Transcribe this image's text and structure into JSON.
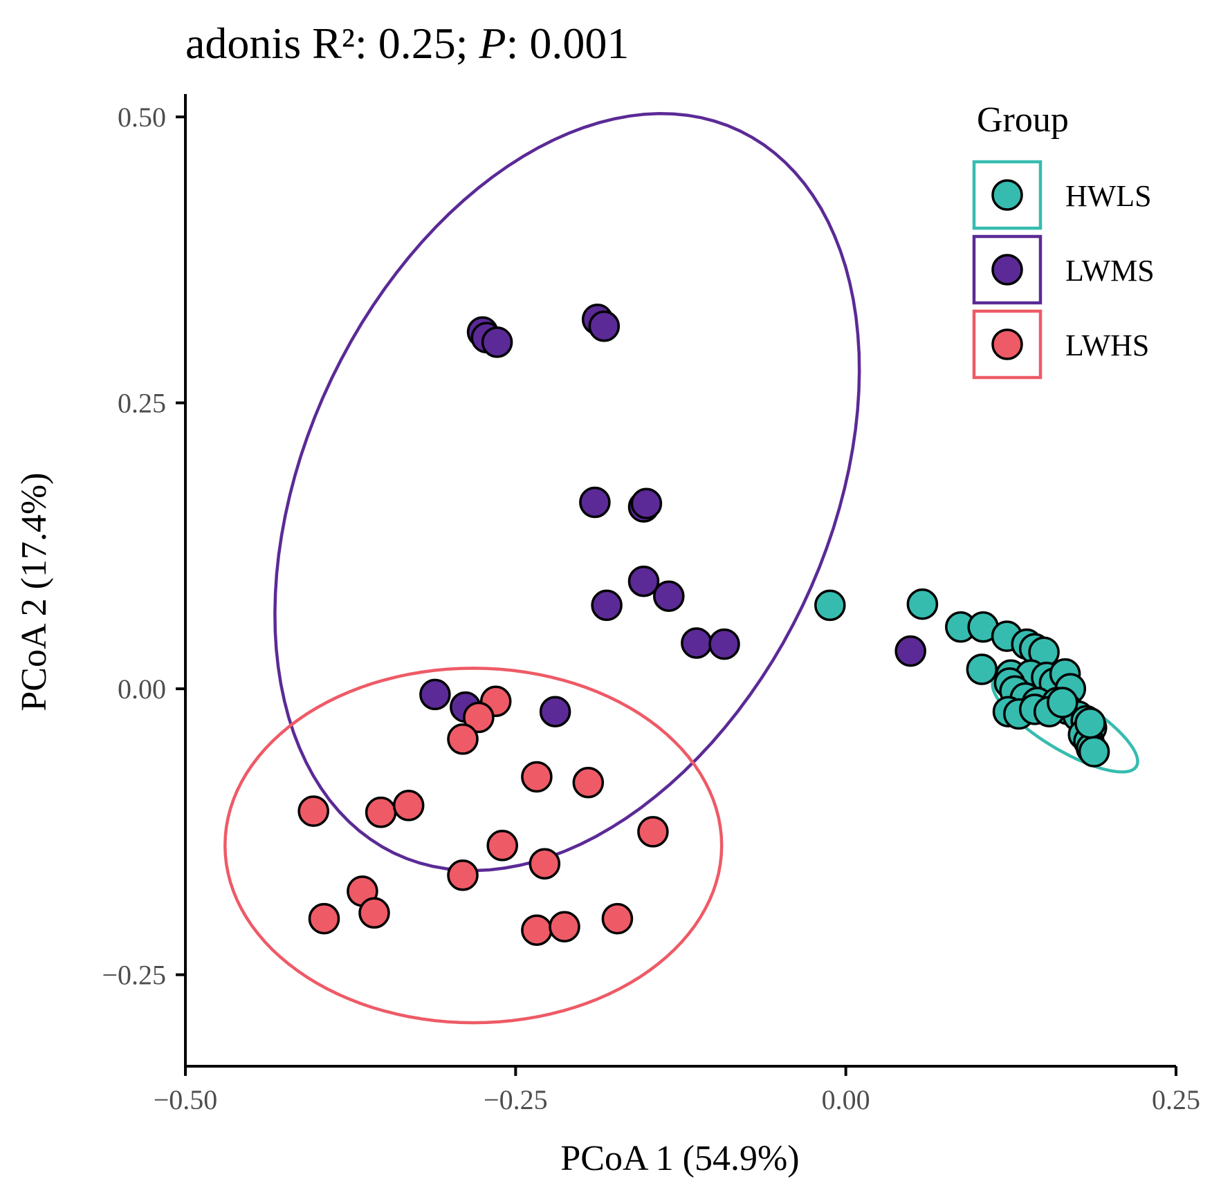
{
  "chart_data": {
    "type": "scatter",
    "title_prefix": "adonis R²: 0.25; ",
    "title_p": "P",
    "title_suffix": ": 0.001",
    "xlabel": "PCoA 1 (54.9%)",
    "ylabel": "PCoA 2 (17.4%)",
    "xlim": [
      -0.5,
      0.25
    ],
    "ylim": [
      -0.33,
      0.52
    ],
    "x_ticks": [
      -0.5,
      -0.25,
      0.0,
      0.25
    ],
    "x_tick_labels": [
      "−0.50",
      "−0.25",
      "0.00",
      "0.25"
    ],
    "y_ticks": [
      -0.25,
      0.0,
      0.25,
      0.5
    ],
    "y_tick_labels": [
      "−0.25",
      "0.00",
      "0.25",
      "0.50"
    ],
    "grid": false,
    "legend": {
      "title": "Group",
      "position": "top-right"
    },
    "series": [
      {
        "name": "HWLS",
        "color": "#35BCAF",
        "ellipse": {
          "cx": 0.166,
          "cy": -0.03,
          "rx": 0.066,
          "ry": 0.022,
          "angle_deg": -36
        },
        "points": [
          [
            -0.012,
            0.073
          ],
          [
            0.058,
            0.074
          ],
          [
            0.087,
            0.054
          ],
          [
            0.104,
            0.054
          ],
          [
            0.122,
            0.046
          ],
          [
            0.137,
            0.039
          ],
          [
            0.143,
            0.035
          ],
          [
            0.15,
            0.032
          ],
          [
            0.103,
            0.017
          ],
          [
            0.125,
            0.012
          ],
          [
            0.14,
            0.012
          ],
          [
            0.152,
            0.01
          ],
          [
            0.158,
            0.005
          ],
          [
            0.166,
            0.013
          ],
          [
            0.17,
            0.0
          ],
          [
            0.124,
            0.005
          ],
          [
            0.128,
            -0.002
          ],
          [
            0.136,
            -0.008
          ],
          [
            0.145,
            -0.012
          ],
          [
            0.16,
            -0.012
          ],
          [
            0.168,
            -0.018
          ],
          [
            0.176,
            -0.024
          ],
          [
            0.182,
            -0.028
          ],
          [
            0.186,
            -0.034
          ],
          [
            0.123,
            -0.02
          ],
          [
            0.131,
            -0.022
          ],
          [
            0.143,
            -0.018
          ],
          [
            0.154,
            -0.02
          ],
          [
            0.164,
            -0.012
          ],
          [
            0.18,
            -0.04
          ],
          [
            0.184,
            -0.046
          ],
          [
            0.186,
            -0.052
          ],
          [
            0.188,
            -0.055
          ],
          [
            0.185,
            -0.03
          ]
        ]
      },
      {
        "name": "LWMS",
        "color": "#5B2A96",
        "ellipse": {
          "cx": -0.211,
          "cy": 0.172,
          "rx": 0.343,
          "ry": 0.202,
          "angle_deg": 71
        },
        "points": [
          [
            -0.275,
            0.312
          ],
          [
            -0.272,
            0.307
          ],
          [
            -0.264,
            0.303
          ],
          [
            -0.188,
            0.323
          ],
          [
            -0.183,
            0.317
          ],
          [
            -0.19,
            0.163
          ],
          [
            -0.153,
            0.159
          ],
          [
            -0.151,
            0.162
          ],
          [
            -0.153,
            0.094
          ],
          [
            -0.181,
            0.073
          ],
          [
            -0.134,
            0.081
          ],
          [
            -0.113,
            0.04
          ],
          [
            -0.092,
            0.039
          ],
          [
            0.049,
            0.033
          ],
          [
            -0.311,
            -0.005
          ],
          [
            -0.288,
            -0.016
          ],
          [
            -0.22,
            -0.02
          ]
        ]
      },
      {
        "name": "LWHS",
        "color": "#EE5A66",
        "ellipse": {
          "cx": -0.282,
          "cy": -0.137,
          "rx": 0.188,
          "ry": 0.155,
          "angle_deg": 0
        },
        "points": [
          [
            -0.265,
            -0.011
          ],
          [
            -0.278,
            -0.025
          ],
          [
            -0.29,
            -0.044
          ],
          [
            -0.234,
            -0.077
          ],
          [
            -0.195,
            -0.082
          ],
          [
            -0.403,
            -0.107
          ],
          [
            -0.352,
            -0.108
          ],
          [
            -0.331,
            -0.102
          ],
          [
            -0.146,
            -0.125
          ],
          [
            -0.26,
            -0.137
          ],
          [
            -0.228,
            -0.153
          ],
          [
            -0.29,
            -0.163
          ],
          [
            -0.366,
            -0.177
          ],
          [
            -0.357,
            -0.196
          ],
          [
            -0.395,
            -0.201
          ],
          [
            -0.234,
            -0.211
          ],
          [
            -0.213,
            -0.208
          ],
          [
            -0.173,
            -0.201
          ]
        ]
      }
    ]
  }
}
